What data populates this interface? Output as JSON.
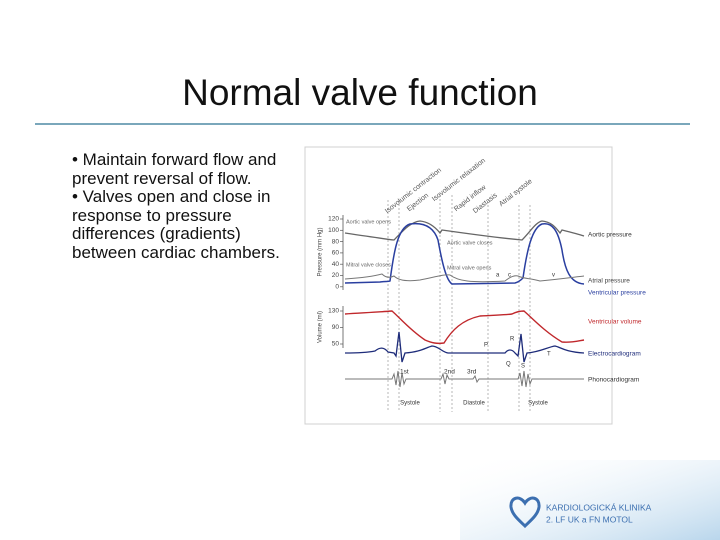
{
  "title": "Normal valve function",
  "bullets": [
    "• Maintain forward flow and prevent reversal of flow.",
    "• Valves open and close in response to pressure differences (gradients) between cardiac chambers."
  ],
  "figure": {
    "phases": [
      "Isovolumic contraction",
      "Ejection",
      "Isovolumic relaxation",
      "Rapid inflow",
      "Diastasis",
      "Atrial systole"
    ],
    "pressure_axis": {
      "label": "Pressure (mm Hg)",
      "ticks": [
        120,
        100,
        80,
        60,
        40,
        20,
        0
      ]
    },
    "volume_axis": {
      "label": "Volume (ml)",
      "ticks": [
        130,
        90,
        50
      ]
    },
    "valve_events": [
      "Aortic valve opens",
      "Aortic valve closes",
      "Mitral valve closes",
      "Mitral valve opens"
    ],
    "atrial_waves": [
      "a",
      "c",
      "v"
    ],
    "traces": [
      "Aortic pressure",
      "Atrial pressure",
      "Ventricular pressure",
      "Ventricular volume",
      "Electrocardiogram",
      "Phonocardiogram"
    ],
    "ecg_waves": [
      "P",
      "Q",
      "R",
      "S",
      "T"
    ],
    "heart_sounds": [
      "1st",
      "2nd",
      "3rd"
    ],
    "periods": [
      "Systole",
      "Diastole",
      "Systole"
    ]
  },
  "logo": {
    "name": "KARDIOLOGICKÁ KLINIKA",
    "affiliation": "2. LF UK a FN MOTOL"
  }
}
